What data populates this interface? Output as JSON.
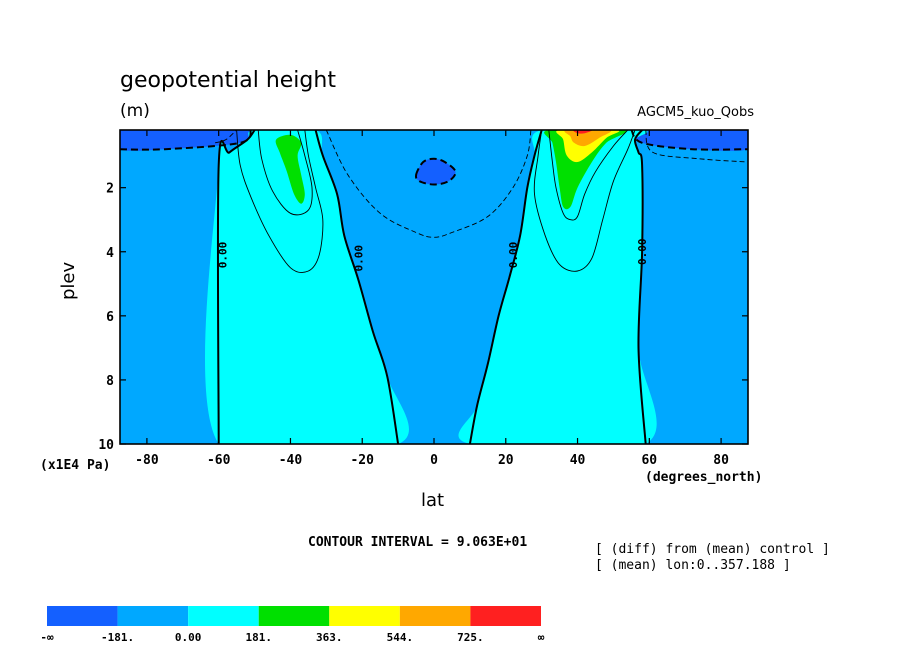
{
  "header": {
    "title": "geopotential height",
    "units": "(m)",
    "run_name": "AGCM5_kuo_Qobs"
  },
  "axes": {
    "xlabel": "lat",
    "ylabel": "plev",
    "y_exponent": "(x1E4 Pa)",
    "x_units": "(degrees_north)"
  },
  "footer": {
    "contour_interval": "CONTOUR INTERVAL = 9.063E+01",
    "note_diff": "[ (diff) from (mean) control ]",
    "note_mean": "[ (mean) lon:0..357.188 ]"
  },
  "colors": {
    "below_m181": "#1460ff",
    "m181_0": "#00a8ff",
    "0_181": "#00ffff",
    "181_363": "#00e000",
    "363_544": "#ffff00",
    "544_725": "#ffa800",
    "above_725": "#ff2020"
  },
  "chart_data": {
    "type": "heatmap",
    "x_range": [
      -87.5,
      87.5
    ],
    "y_range": [
      10,
      0.2
    ],
    "y_reversed": true,
    "x_ticks": [
      -80,
      -60,
      -40,
      -20,
      0,
      20,
      40,
      60,
      80
    ],
    "x_tick_labels": [
      "-80",
      "-60",
      "-40",
      "-20",
      "0",
      "20",
      "40",
      "60",
      "80"
    ],
    "y_ticks": [
      2,
      4,
      6,
      8,
      10
    ],
    "y_tick_labels": [
      "2",
      "4",
      "6",
      "8",
      "10"
    ],
    "contour_labels": [
      {
        "text": "0.00",
        "lat": -59,
        "plev": 4.1
      },
      {
        "text": "0.00",
        "lat": -21,
        "plev": 4.2
      },
      {
        "text": "0.00",
        "lat": 22,
        "plev": 4.1
      },
      {
        "text": "0.00",
        "lat": 58,
        "plev": 4.0
      }
    ],
    "colorbar": {
      "labels": [
        "-∞",
        "-181.",
        "0.00",
        "181.",
        "363.",
        "544.",
        "725.",
        "∞"
      ],
      "levels": [
        -181.3,
        0,
        181.3,
        362.5,
        543.8,
        725
      ],
      "colors": [
        "#1460ff",
        "#00a8ff",
        "#00ffff",
        "#00e000",
        "#ffff00",
        "#ffa800",
        "#ff2020"
      ]
    },
    "regions": [
      {
        "fill": "#1460ff",
        "pts": [
          [
            -87.5,
            0.2
          ],
          [
            -51,
            0.2
          ],
          [
            -54,
            0.6
          ],
          [
            -75,
            0.8
          ],
          [
            -87.5,
            0.8
          ]
        ]
      },
      {
        "fill": "#1460ff",
        "pts": [
          [
            55,
            0.2
          ],
          [
            87.5,
            0.2
          ],
          [
            87.5,
            0.8
          ],
          [
            72,
            0.8
          ],
          [
            58,
            0.6
          ]
        ]
      },
      {
        "fill": "#1460ff",
        "pts": [
          [
            -5,
            1.6
          ],
          [
            -3,
            1.2
          ],
          [
            0,
            1.1
          ],
          [
            3,
            1.2
          ],
          [
            6,
            1.5
          ],
          [
            4,
            1.8
          ],
          [
            0,
            1.9
          ],
          [
            -4,
            1.8
          ]
        ]
      },
      {
        "fill": "#00ffff",
        "pts": [
          [
            -60,
            10
          ],
          [
            -60,
            1.3
          ],
          [
            -57,
            0.9
          ],
          [
            -52,
            0.5
          ],
          [
            -50,
            0.2
          ],
          [
            -33,
            0.2
          ],
          [
            -31,
            1.0
          ],
          [
            -27,
            2.2
          ],
          [
            -25,
            3.5
          ],
          [
            -21,
            4.9
          ],
          [
            -17,
            6.5
          ],
          [
            -13,
            7.9
          ],
          [
            -10,
            10
          ]
        ]
      },
      {
        "fill": "#00ffff",
        "pts": [
          [
            10,
            10
          ],
          [
            12,
            8.8
          ],
          [
            15,
            7.5
          ],
          [
            18,
            6.0
          ],
          [
            21,
            4.8
          ],
          [
            24,
            3.5
          ],
          [
            26,
            2.0
          ],
          [
            28,
            1.0
          ],
          [
            30,
            0.2
          ],
          [
            58,
            0.2
          ],
          [
            56,
            0.5
          ],
          [
            57,
            0.9
          ],
          [
            58,
            1.3
          ],
          [
            58,
            4.0
          ],
          [
            57,
            7.0
          ],
          [
            59,
            10
          ]
        ]
      },
      {
        "fill": "#00e000",
        "pts": [
          [
            -44,
            0.5
          ],
          [
            -40,
            0.35
          ],
          [
            -37,
            0.6
          ],
          [
            -38,
            1.0
          ],
          [
            -37,
            1.6
          ],
          [
            -36,
            2.2
          ],
          [
            -37,
            2.5
          ],
          [
            -39,
            2.2
          ],
          [
            -41,
            1.5
          ],
          [
            -42,
            1.2
          ],
          [
            -43,
            0.9
          ]
        ]
      },
      {
        "fill": "#00e000",
        "pts": [
          [
            32,
            0.2
          ],
          [
            53,
            0.2
          ],
          [
            48,
            0.6
          ],
          [
            44,
            1.2
          ],
          [
            40,
            2.0
          ],
          [
            38,
            2.6
          ],
          [
            36,
            2.6
          ],
          [
            35,
            2.0
          ],
          [
            34,
            1.2
          ],
          [
            33,
            0.6
          ]
        ]
      },
      {
        "fill": "#ffff00",
        "pts": [
          [
            35,
            0.2
          ],
          [
            51,
            0.2
          ],
          [
            48,
            0.45
          ],
          [
            44,
            0.9
          ],
          [
            40,
            1.2
          ],
          [
            37,
            1.0
          ],
          [
            36,
            0.5
          ]
        ]
      },
      {
        "fill": "#ffa800",
        "pts": [
          [
            37,
            0.2
          ],
          [
            49,
            0.2
          ],
          [
            46,
            0.45
          ],
          [
            42,
            0.7
          ],
          [
            39,
            0.6
          ],
          [
            38,
            0.4
          ]
        ]
      },
      {
        "fill": "#ff2020",
        "pts": [
          [
            39,
            0.2
          ],
          [
            44,
            0.2
          ],
          [
            42,
            0.3
          ],
          [
            40,
            0.3
          ]
        ]
      }
    ],
    "contours": [
      {
        "style": "solid-bold",
        "pts": [
          [
            -60,
            10
          ],
          [
            -60,
            1.3
          ],
          [
            -57,
            0.9
          ],
          [
            -52,
            0.5
          ],
          [
            -50,
            0.2
          ]
        ]
      },
      {
        "style": "solid-bold",
        "pts": [
          [
            -33,
            0.2
          ],
          [
            -31,
            1.0
          ],
          [
            -27,
            2.2
          ],
          [
            -25,
            3.5
          ],
          [
            -21,
            4.9
          ],
          [
            -17,
            6.5
          ],
          [
            -13,
            7.9
          ],
          [
            -10,
            10
          ]
        ]
      },
      {
        "style": "solid-bold",
        "pts": [
          [
            10,
            10
          ],
          [
            12,
            8.8
          ],
          [
            15,
            7.5
          ],
          [
            18,
            6.0
          ],
          [
            21,
            4.8
          ],
          [
            24,
            3.5
          ],
          [
            26,
            2.0
          ],
          [
            28,
            1.0
          ],
          [
            30,
            0.2
          ]
        ]
      },
      {
        "style": "solid-bold",
        "pts": [
          [
            58,
            0.2
          ],
          [
            56,
            0.5
          ],
          [
            57,
            0.9
          ],
          [
            58,
            1.3
          ],
          [
            58,
            4.0
          ],
          [
            57,
            7.0
          ],
          [
            59,
            10
          ]
        ]
      },
      {
        "style": "dash-bold",
        "pts": [
          [
            -87.5,
            0.8
          ],
          [
            -75,
            0.8
          ],
          [
            -54,
            0.6
          ],
          [
            -51,
            0.2
          ]
        ]
      },
      {
        "style": "dash-bold",
        "pts": [
          [
            55,
            0.2
          ],
          [
            58,
            0.6
          ],
          [
            72,
            0.8
          ],
          [
            87.5,
            0.8
          ]
        ]
      },
      {
        "style": "dash-bold",
        "pts": [
          [
            -5,
            1.6
          ],
          [
            -3,
            1.2
          ],
          [
            0,
            1.1
          ],
          [
            3,
            1.2
          ],
          [
            6,
            1.5
          ],
          [
            4,
            1.8
          ],
          [
            0,
            1.9
          ],
          [
            -4,
            1.8
          ],
          [
            -5,
            1.6
          ]
        ]
      },
      {
        "style": "solid-thin",
        "pts": [
          [
            -55,
            0.2
          ],
          [
            -54,
            1.3
          ],
          [
            -51,
            2.3
          ],
          [
            -46,
            3.5
          ],
          [
            -40,
            4.5
          ],
          [
            -35,
            4.6
          ],
          [
            -32,
            4.1
          ],
          [
            -31,
            3.0
          ],
          [
            -33,
            2.0
          ],
          [
            -35,
            1.0
          ],
          [
            -36,
            0.2
          ]
        ]
      },
      {
        "style": "solid-thin",
        "pts": [
          [
            -49,
            0.2
          ],
          [
            -48,
            1.1
          ],
          [
            -45,
            2.1
          ],
          [
            -40,
            2.8
          ],
          [
            -35,
            2.7
          ],
          [
            -34,
            2.0
          ],
          [
            -36,
            1.0
          ],
          [
            -38,
            0.2
          ]
        ]
      },
      {
        "style": "solid-thin",
        "pts": [
          [
            30,
            0.2
          ],
          [
            29,
            1.0
          ],
          [
            28,
            2.2
          ],
          [
            31,
            3.5
          ],
          [
            35,
            4.4
          ],
          [
            40,
            4.6
          ],
          [
            44,
            4.2
          ],
          [
            47,
            3.0
          ],
          [
            50,
            1.8
          ],
          [
            54,
            0.8
          ],
          [
            56,
            0.2
          ]
        ]
      },
      {
        "style": "solid-thin",
        "pts": [
          [
            32,
            0.2
          ],
          [
            33,
            1.2
          ],
          [
            34,
            2.0
          ],
          [
            36,
            2.8
          ],
          [
            38,
            3.0
          ],
          [
            40,
            2.9
          ],
          [
            42,
            2.2
          ],
          [
            45,
            1.5
          ],
          [
            50,
            0.7
          ],
          [
            54,
            0.2
          ]
        ]
      },
      {
        "style": "dash-thin",
        "pts": [
          [
            -61,
            0.6
          ],
          [
            -58,
            0.5
          ],
          [
            -55,
            0.2
          ]
        ]
      },
      {
        "style": "dash-thin",
        "pts": [
          [
            -30,
            0.2
          ],
          [
            -24,
            1.6
          ],
          [
            -15,
            2.8
          ],
          [
            -5,
            3.4
          ],
          [
            0,
            3.55
          ],
          [
            5,
            3.4
          ],
          [
            15,
            2.9
          ],
          [
            22,
            2.0
          ],
          [
            26,
            1.0
          ],
          [
            27,
            0.2
          ]
        ]
      },
      {
        "style": "dash-thin",
        "pts": [
          [
            59,
            0.2
          ],
          [
            61,
            0.9
          ],
          [
            74,
            1.1
          ],
          [
            87.5,
            1.2
          ]
        ]
      }
    ]
  }
}
